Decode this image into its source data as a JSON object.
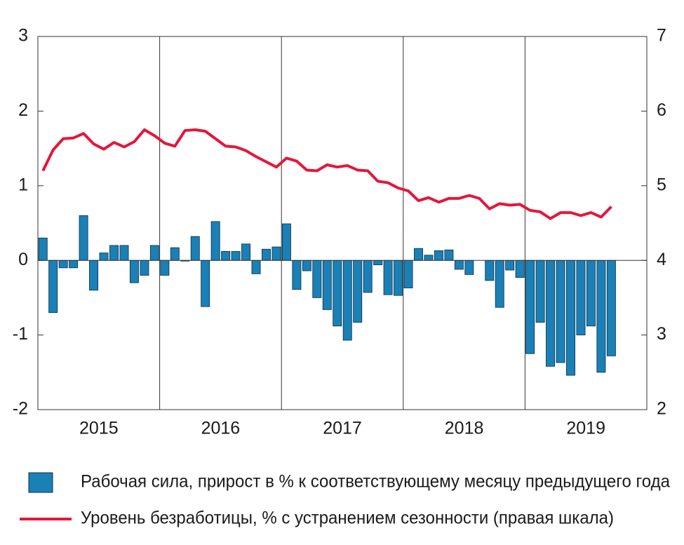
{
  "chart_data": {
    "type": "bar-line",
    "categories": [
      null,
      null,
      null,
      null,
      null,
      null,
      null,
      null,
      null,
      null,
      null,
      null,
      null,
      null,
      null,
      null,
      null,
      null,
      null,
      null,
      null,
      null,
      null,
      null,
      null,
      null,
      null,
      null,
      null,
      null,
      null,
      null,
      null,
      null,
      null,
      null,
      null,
      null,
      null,
      null,
      null,
      null,
      null,
      null,
      null,
      null,
      null,
      null,
      null,
      null,
      null,
      null,
      null,
      null,
      null,
      null,
      null
    ],
    "year_labels": [
      "2015",
      "2016",
      "2017",
      "2018",
      "2019"
    ],
    "series": [
      {
        "name": "Рабочая сила, прирост в % к соответствующему месяцу предыдущего года",
        "type": "bar",
        "color": "#1a80b6",
        "values": [
          0.3,
          -0.7,
          -0.1,
          -0.1,
          0.6,
          -0.4,
          0.1,
          0.2,
          0.2,
          -0.3,
          -0.2,
          0.2,
          -0.2,
          0.17,
          -0.01,
          0.32,
          -0.62,
          0.52,
          0.12,
          0.12,
          0.22,
          -0.18,
          0.15,
          0.18,
          0.49,
          -0.39,
          -0.14,
          -0.5,
          -0.66,
          -0.88,
          -1.07,
          -0.83,
          -0.43,
          -0.06,
          -0.46,
          -0.47,
          -0.37,
          0.16,
          0.07,
          0.13,
          0.14,
          -0.12,
          -0.19,
          0,
          -0.27,
          -0.63,
          -0.13,
          -0.23,
          -1.25,
          -0.83,
          -1.42,
          -1.37,
          -1.54,
          -1.0,
          -0.88,
          -1.5,
          -1.28
        ]
      },
      {
        "name": "Уровень безработицы, % с устранением сезонности (правая шкала)",
        "type": "line",
        "axis": "y2",
        "color": "#e3173a",
        "values": [
          5.2,
          5.48,
          5.63,
          5.64,
          5.7,
          5.56,
          5.49,
          5.58,
          5.52,
          5.59,
          5.75,
          5.67,
          5.57,
          5.53,
          5.74,
          5.75,
          5.73,
          5.63,
          5.53,
          5.52,
          5.47,
          5.39,
          5.32,
          5.25,
          5.37,
          5.33,
          5.21,
          5.2,
          5.28,
          5.25,
          5.27,
          5.21,
          5.2,
          5.06,
          5.04,
          4.97,
          4.93,
          4.8,
          4.84,
          4.78,
          4.83,
          4.83,
          4.87,
          4.83,
          4.69,
          4.76,
          4.74,
          4.75,
          4.67,
          4.65,
          4.56,
          4.64,
          4.64,
          4.6,
          4.64,
          4.58,
          4.72
        ]
      }
    ],
    "ylim": [
      -2,
      3
    ],
    "yticks": [
      -2,
      -1,
      0,
      1,
      2,
      3
    ],
    "y2lim": [
      2,
      7
    ],
    "y2ticks": [
      2,
      3,
      4,
      5,
      6,
      7
    ],
    "months_per_year": 12
  }
}
